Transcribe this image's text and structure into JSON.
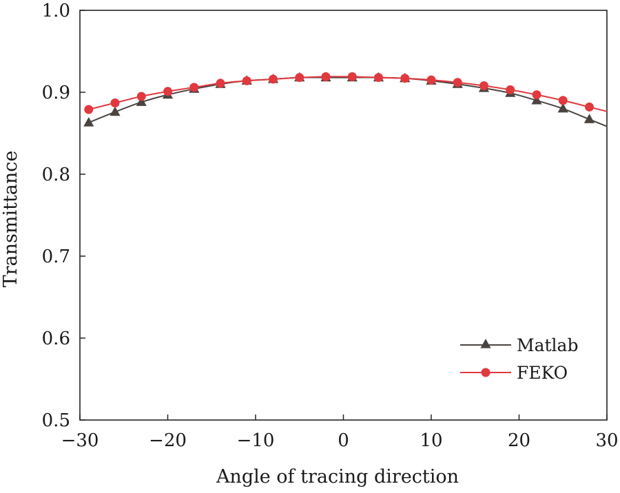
{
  "chart_data": {
    "type": "line",
    "title": "",
    "xlabel": "Angle of tracing direction",
    "ylabel": "Transmittance",
    "xlim": [
      -30,
      30
    ],
    "ylim": [
      0.5,
      1.0
    ],
    "xticks": [
      -30,
      -20,
      -10,
      0,
      10,
      20,
      30
    ],
    "xtick_labels": [
      "−30",
      "−20",
      "−10",
      "0",
      "10",
      "20",
      "30"
    ],
    "yticks": [
      0.5,
      0.6,
      0.7,
      0.8,
      0.9,
      1.0
    ],
    "ytick_labels": [
      "0.5",
      "0.6",
      "0.7",
      "0.8",
      "0.9",
      "1.0"
    ],
    "grid": false,
    "legend_position": "bottom-right",
    "x": [
      -29,
      -26,
      -23,
      -20,
      -17,
      -14,
      -11,
      -8,
      -5,
      -2,
      1,
      4,
      7,
      10,
      13,
      16,
      19,
      22,
      25,
      28
    ],
    "series": [
      {
        "name": "Matlab",
        "marker": "triangle",
        "color": "#4a4441",
        "values": [
          0.863,
          0.876,
          0.888,
          0.897,
          0.904,
          0.91,
          0.914,
          0.916,
          0.918,
          0.918,
          0.918,
          0.918,
          0.917,
          0.914,
          0.91,
          0.905,
          0.899,
          0.89,
          0.88,
          0.867
        ]
      },
      {
        "name": "FEKO",
        "marker": "circle",
        "color": "#e0393e",
        "values": [
          0.879,
          0.887,
          0.895,
          0.901,
          0.906,
          0.911,
          0.914,
          0.916,
          0.918,
          0.919,
          0.919,
          0.918,
          0.917,
          0.915,
          0.912,
          0.908,
          0.903,
          0.897,
          0.89,
          0.882
        ]
      }
    ]
  }
}
